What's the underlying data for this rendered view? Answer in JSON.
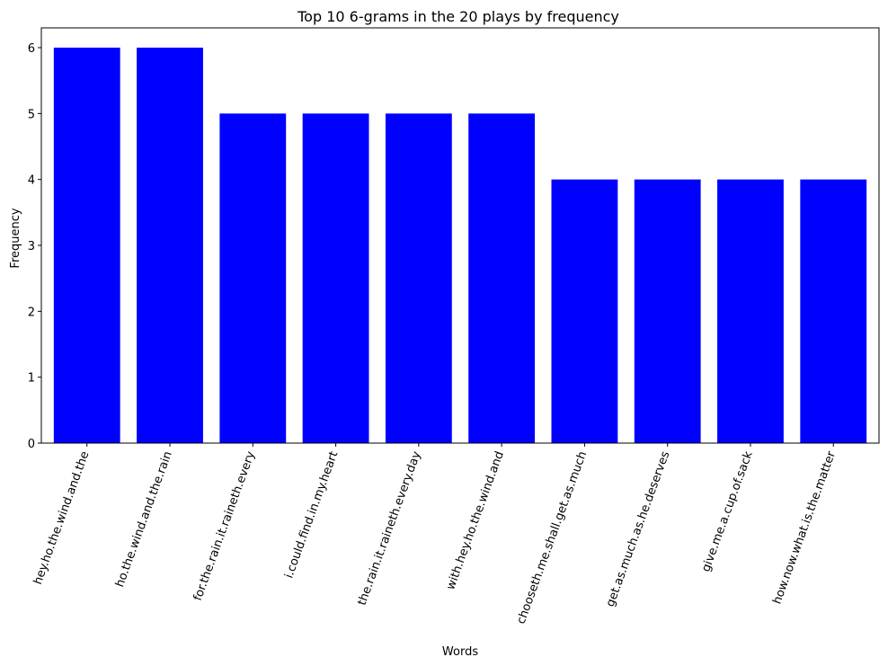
{
  "chart_data": {
    "type": "bar",
    "title": "Top 10 6-grams in the 20 plays by frequency",
    "xlabel": "Words",
    "ylabel": "Frequency",
    "ylim": [
      0,
      6.3
    ],
    "yticks": [
      0,
      1,
      2,
      3,
      4,
      5,
      6
    ],
    "grid": false,
    "bar_color": "#0000ff",
    "x_tick_rotation": -70,
    "categories": [
      "hey.ho.the.wind.and.the",
      "ho.the.wind.and.the.rain",
      "for.the.rain.it.raineth.every",
      "i.could.find.in.my.heart",
      "the.rain.it.raineth.every.day",
      "with.hey.ho.the.wind.and",
      "chooseth.me.shall.get.as.much",
      "get.as.much.as.he.deserves",
      "give.me.a.cup.of.sack",
      "how.now.what.is.the.matter"
    ],
    "values": [
      6,
      6,
      5,
      5,
      5,
      5,
      4,
      4,
      4,
      4
    ]
  }
}
